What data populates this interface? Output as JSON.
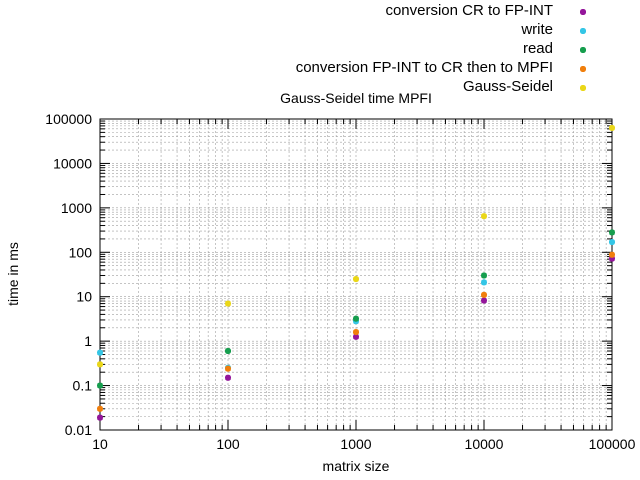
{
  "chart_data": {
    "type": "scatter",
    "title": "Gauss-Seidel time MPFI",
    "xlabel": "matrix size",
    "ylabel": "time in ms",
    "x_scale": "log",
    "y_scale": "log",
    "xlim": [
      10,
      100000
    ],
    "ylim": [
      0.01,
      100000
    ],
    "x_ticks": [
      "10",
      "100",
      "1000",
      "10000",
      "100000"
    ],
    "y_ticks": [
      "0.01",
      "0.1",
      "1",
      "10",
      "100",
      "1000",
      "10000",
      "100000"
    ],
    "grid": true,
    "legend_position": "top-right",
    "series": [
      {
        "name": "conversion CR to FP-INT",
        "color": "#94169b",
        "x": [
          10,
          100,
          1000,
          10000,
          100000
        ],
        "y": [
          0.019,
          0.15,
          1.25,
          8.2,
          72
        ]
      },
      {
        "name": "write",
        "color": "#34c6e6",
        "x": [
          10,
          100,
          1000,
          10000,
          100000
        ],
        "y": [
          0.55,
          0.25,
          2.8,
          21,
          170
        ]
      },
      {
        "name": "read",
        "color": "#169e4e",
        "x": [
          10,
          100,
          1000,
          10000,
          100000
        ],
        "y": [
          0.1,
          0.6,
          3.2,
          30,
          280
        ]
      },
      {
        "name": "conversion FP-INT to CR then to MPFI",
        "color": "#f07f0d",
        "x": [
          10,
          100,
          1000,
          10000,
          100000
        ],
        "y": [
          0.03,
          0.24,
          1.6,
          11,
          88
        ]
      },
      {
        "name": "Gauss-Seidel",
        "color": "#ead719",
        "x": [
          10,
          100,
          1000,
          10000,
          100000
        ],
        "y": [
          0.3,
          7.0,
          25,
          650,
          63000
        ]
      }
    ]
  }
}
